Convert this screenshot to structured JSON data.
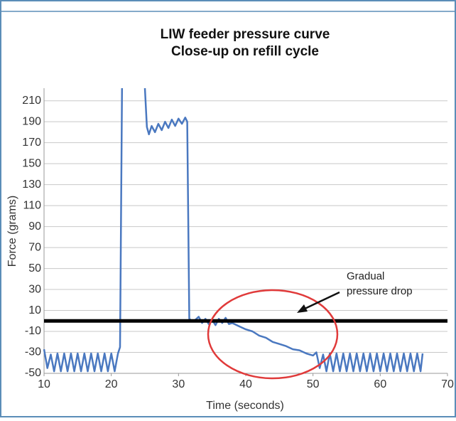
{
  "chart_data": {
    "type": "line",
    "title": [
      "LIW feeder pressure curve",
      "Close-up on refill cycle"
    ],
    "x_label": "Time (seconds)",
    "y_label": "Force (grams)",
    "xlim": [
      10,
      70
    ],
    "xticks": [
      10,
      20,
      30,
      40,
      50,
      60,
      70
    ],
    "ylim": [
      -50,
      222
    ],
    "yticks": [
      210,
      190,
      170,
      150,
      130,
      110,
      90,
      70,
      50,
      30,
      10,
      -10,
      -30,
      -50
    ],
    "grid": true,
    "reference_line": 0,
    "annotation": [
      "Gradual",
      "pressure drop"
    ],
    "series": [
      {
        "color": "#4a78c0",
        "x": [
          10,
          10.5,
          11,
          11.5,
          12,
          12.5,
          13,
          13.5,
          14,
          14.5,
          15,
          15.5,
          16,
          16.5,
          17,
          17.5,
          18,
          18.5,
          19,
          19.5,
          20,
          20.5,
          21,
          21.3,
          21.6,
          23,
          25,
          25.3,
          25.6,
          26,
          26.5,
          27,
          27.5,
          28,
          28.5,
          29,
          29.5,
          30,
          30.5,
          31,
          31.3,
          31.6,
          32,
          32.5,
          33,
          33.5,
          34,
          34.5,
          35,
          35.5,
          36,
          36.5,
          37,
          37.5,
          38,
          39,
          40,
          41,
          42,
          43,
          44,
          45,
          46,
          47,
          48,
          49,
          50,
          50.5,
          51,
          51.5,
          52,
          52.5,
          53,
          53.5,
          54,
          54.5,
          55,
          55.5,
          56,
          56.5,
          57,
          57.5,
          58,
          58.5,
          59,
          59.5,
          60,
          60.5,
          61,
          61.5,
          62,
          62.5,
          63,
          63.5,
          64,
          64.5,
          65,
          65.5,
          66,
          66.3
        ],
        "values": [
          -27,
          -45,
          -32,
          -48,
          -31,
          -48,
          -31,
          -48,
          -31,
          -48,
          -31,
          -48,
          -31,
          -48,
          -31,
          -48,
          -31,
          -48,
          -31,
          -48,
          -31,
          -48,
          -31,
          -25,
          222,
          null,
          222,
          185,
          178,
          186,
          180,
          188,
          182,
          190,
          184,
          192,
          186,
          193,
          188,
          194,
          190,
          2,
          0,
          1,
          4,
          -2,
          2,
          -3,
          1,
          -4,
          2,
          -2,
          3,
          -3,
          -2,
          -5,
          -8,
          -10,
          -14,
          -16,
          -20,
          -22,
          -24,
          -27,
          -28,
          -31,
          -33,
          -30,
          -45,
          -32,
          -48,
          -31,
          -48,
          -31,
          -48,
          -31,
          -48,
          -31,
          -48,
          -31,
          -48,
          -31,
          -48,
          -31,
          -48,
          -31,
          -48,
          -31,
          -48,
          -31,
          -48,
          -31,
          -48,
          -31,
          -48,
          -31,
          -48,
          -31,
          -48,
          -31
        ]
      }
    ]
  }
}
